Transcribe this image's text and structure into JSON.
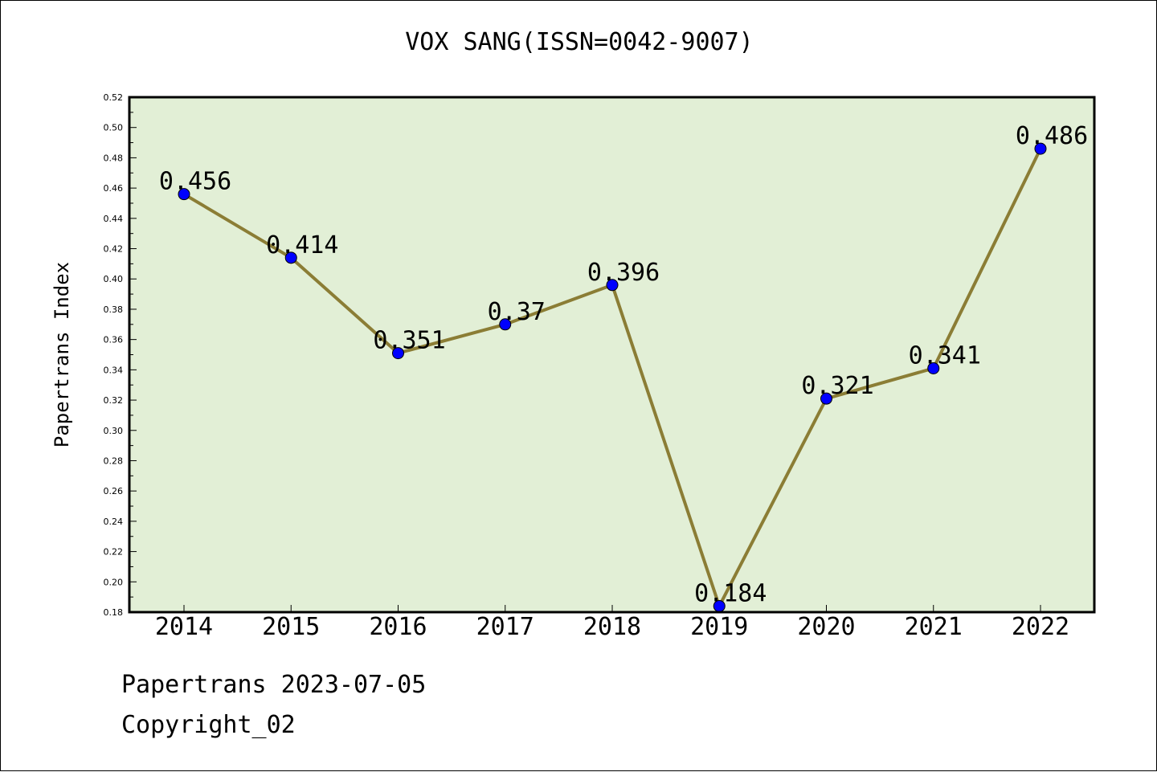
{
  "chart_data": {
    "type": "line",
    "title": "VOX SANG(ISSN=0042-9007)",
    "xlabel": "",
    "ylabel": "Papertrans Index",
    "categories": [
      "2014",
      "2015",
      "2016",
      "2017",
      "2018",
      "2019",
      "2020",
      "2021",
      "2022"
    ],
    "series": [
      {
        "values": [
          0.456,
          0.414,
          0.351,
          0.37,
          0.396,
          0.184,
          0.321,
          0.341,
          0.486
        ],
        "data_labels": [
          "0.456",
          "0.414",
          "0.351",
          "0.37",
          "0.396",
          "0.184",
          "0.321",
          "0.341",
          "0.486"
        ]
      }
    ],
    "ylim": [
      0.18,
      0.52
    ],
    "yticks": [
      "0.18",
      "0.20",
      "0.22",
      "0.24",
      "0.26",
      "0.28",
      "0.30",
      "0.32",
      "0.34",
      "0.36",
      "0.38",
      "0.40",
      "0.42",
      "0.44",
      "0.46",
      "0.48",
      "0.50",
      "0.52"
    ],
    "grid": false,
    "colors": {
      "plot_background": "#e2efd6",
      "line": "#8b7d35",
      "marker": "#0000ff"
    }
  },
  "footer": {
    "date_line": "Papertrans 2023-07-05",
    "copyright_line": "Copyright_02"
  }
}
